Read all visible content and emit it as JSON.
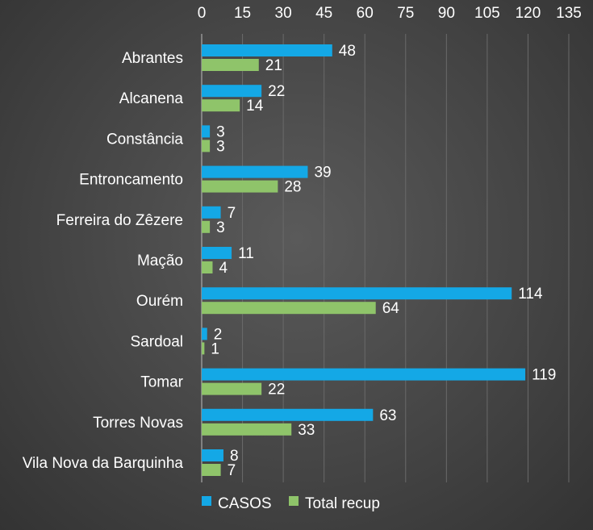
{
  "chart_data": {
    "type": "bar",
    "orientation": "horizontal",
    "categories": [
      "Abrantes",
      "Alcanena",
      "Constância",
      "Entroncamento",
      "Ferreira do Zêzere",
      "Mação",
      "Ourém",
      "Sardoal",
      "Tomar",
      "Torres Novas",
      "Vila Nova da Barquinha"
    ],
    "series": [
      {
        "name": "CASOS",
        "color": "#14a8e6",
        "values": [
          48,
          22,
          3,
          39,
          7,
          11,
          114,
          2,
          119,
          63,
          8
        ]
      },
      {
        "name": "Total recup",
        "color": "#8fc46a",
        "values": [
          21,
          14,
          3,
          28,
          3,
          4,
          64,
          1,
          22,
          33,
          7
        ]
      }
    ],
    "xlim": [
      0,
      135
    ],
    "xticks": [
      0,
      15,
      30,
      45,
      60,
      75,
      90,
      105,
      120,
      135
    ],
    "x_axis_position": "top",
    "grid": true,
    "data_labels": true,
    "legend_position": "bottom"
  }
}
